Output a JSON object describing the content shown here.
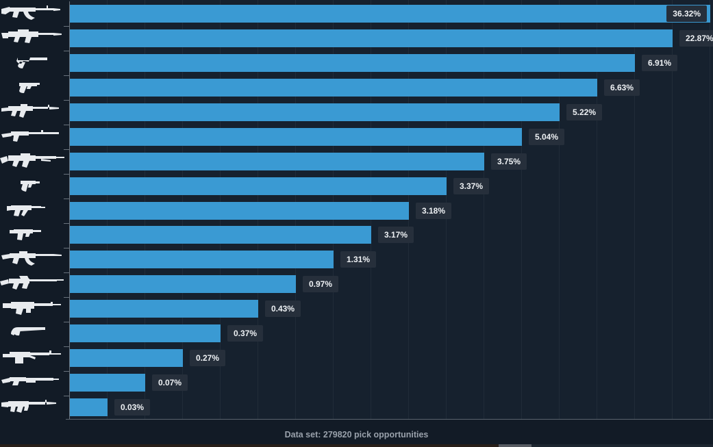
{
  "chart_data": {
    "type": "bar",
    "orientation": "horizontal",
    "title": "",
    "xlabel": "",
    "ylabel": "",
    "grid": true,
    "legend": false,
    "bar_scale": "rank-spaced (each bar ends one gridline short of the one above)",
    "categories": [
      "ak47",
      "battle-rifle",
      "revolver",
      "pistol",
      "carbine",
      "marksman-rifle",
      "auto-sniper",
      "machine-pistol",
      "smg",
      "compact-smg",
      "scoped-rifle",
      "sniper-rifle",
      "lmg",
      "sawed-off-shotgun",
      "heavy-lmg",
      "pump-shotgun",
      "bullpup-rifle"
    ],
    "values": [
      36.32,
      22.87,
      6.91,
      6.63,
      5.22,
      5.04,
      3.75,
      3.37,
      3.18,
      3.17,
      1.31,
      0.97,
      0.43,
      0.37,
      0.27,
      0.07,
      0.03
    ],
    "labels": [
      "36.32%",
      "22.87%",
      "6.91%",
      "6.63%",
      "5.22%",
      "5.04%",
      "3.75%",
      "3.37%",
      "3.18%",
      "3.17%",
      "1.31%",
      "0.97%",
      "0.43%",
      "0.37%",
      "0.27%",
      "0.07%",
      "0.03%"
    ]
  },
  "footer": {
    "caption": "Data set: 279820 pick opportunities"
  },
  "colors": {
    "bar": "#3a9ad3",
    "label_box": "#262f3b",
    "background": "#121b26",
    "plot_background": "#16212e",
    "axis": "#6a737d",
    "footer_text": "#99a1ab"
  }
}
